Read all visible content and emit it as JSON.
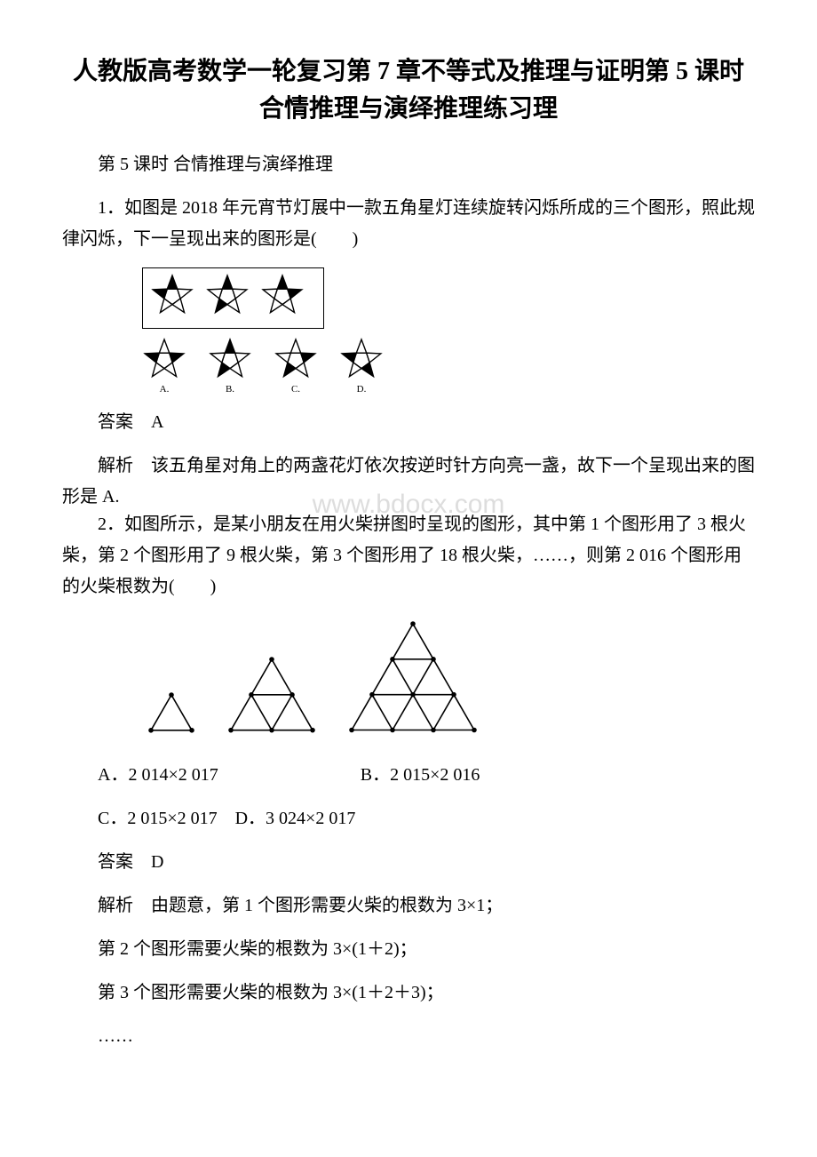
{
  "title": "人教版高考数学一轮复习第 7 章不等式及推理与证明第 5 课时合情推理与演绎推理练习理",
  "subtitle": "第 5 课时 合情推理与演绎推理",
  "q1": {
    "stem": "1．如图是 2018 年元宵节灯展中一款五角星灯连续旋转闪烁所成的三个图形，照此规律闪烁，下一呈现出来的图形是(　　)",
    "stars_boxed": [
      {
        "filled": [
          1,
          0,
          0,
          0,
          1
        ]
      },
      {
        "filled": [
          1,
          0,
          0,
          1,
          0
        ]
      },
      {
        "filled": [
          1,
          1,
          0,
          0,
          0
        ]
      }
    ],
    "options": [
      {
        "label": "A.",
        "filled": [
          0,
          1,
          0,
          0,
          1
        ]
      },
      {
        "label": "B.",
        "filled": [
          1,
          0,
          0,
          1,
          0
        ]
      },
      {
        "label": "C.",
        "filled": [
          0,
          1,
          0,
          1,
          0
        ]
      },
      {
        "label": "D.",
        "filled": [
          0,
          0,
          1,
          0,
          1
        ]
      }
    ],
    "answer": "答案　A",
    "explain": "解析　该五角星对角上的两盏花灯依次按逆时针方向亮一盏，故下一个呈现出来的图形是 A."
  },
  "watermark": "www.bdocx.com",
  "q2": {
    "stem": "2．如图所示，是某小朋友在用火柴拼图时呈现的图形，其中第 1 个图形用了 3 根火柴，第 2 个图形用了 9 根火柴，第 3 个图形用了 18 根火柴，……，则第 2 016 个图形用的火柴根数为(　　)",
    "triangle_levels": [
      1,
      2,
      3
    ],
    "options_line1_a": "A．2 014×2 017",
    "options_line1_b": "B．2 015×2 016",
    "options_line2": "C．2 015×2 017　D．3 024×2 017",
    "answer": "答案　D",
    "explain_lines": [
      "解析　由题意，第 1 个图形需要火柴的根数为 3×1；",
      "第 2 个图形需要火柴的根数为 3×(1＋2)；",
      "第 3 个图形需要火柴的根数为 3×(1＋2＋3)；",
      "……"
    ]
  },
  "star_style": {
    "size": 50,
    "stroke": "#000000",
    "fill_on": "#000000",
    "fill_off": "#ffffff"
  },
  "triangle_style": {
    "stroke": "#000000",
    "unit": 46,
    "dot_radius": 2.8
  }
}
